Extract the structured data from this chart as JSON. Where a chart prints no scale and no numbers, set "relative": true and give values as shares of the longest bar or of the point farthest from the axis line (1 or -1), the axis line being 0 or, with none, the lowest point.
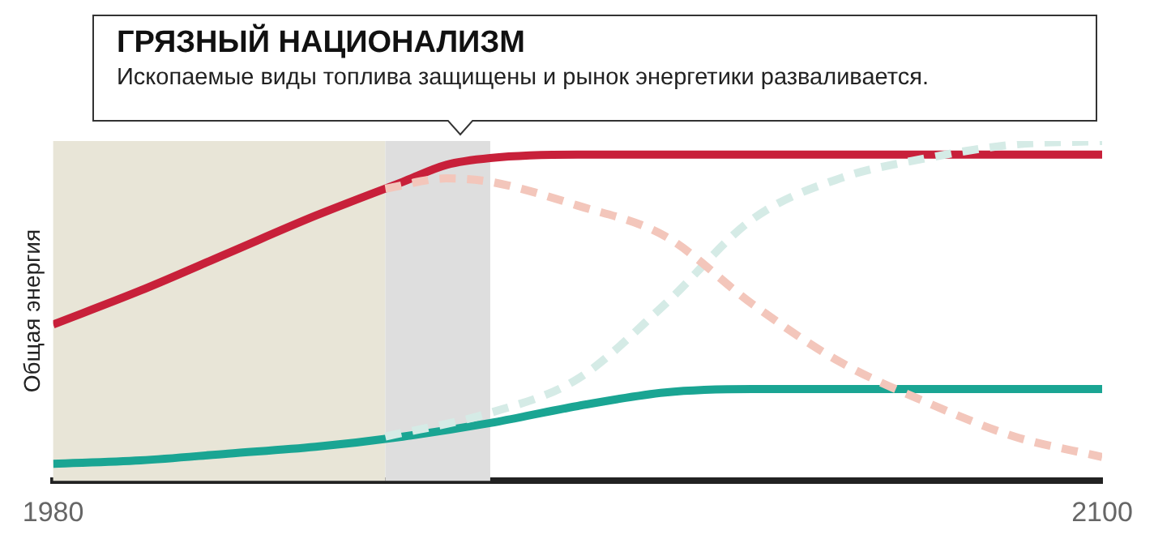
{
  "chart_data": {
    "type": "line",
    "title": "ГРЯЗНЫЙ НАЦИОНАЛИЗМ",
    "subtitle": "Ископаемые виды топлива защищены и рынок энергетики разваливается.",
    "ylabel": "Общая энергия",
    "relative": true,
    "xlim": [
      1980,
      2100
    ],
    "xticks": [
      1980,
      2100
    ],
    "grid": false,
    "legend": false,
    "marker": "none",
    "bands": [
      {
        "axis": "x",
        "from": 1980,
        "to": 2018,
        "color": "#e8e5d7"
      },
      {
        "axis": "x",
        "from": 2018,
        "to": 2030,
        "color": "#dedede"
      }
    ],
    "series": [
      {
        "color": "#f3c6bb",
        "line_style": "dashed",
        "x": [
          2018,
          2025,
          2030,
          2040,
          2050,
          2060,
          2070,
          2080,
          2090,
          2100
        ],
        "values": [
          0.86,
          0.89,
          0.88,
          0.81,
          0.72,
          0.52,
          0.35,
          0.23,
          0.13,
          0.07
        ]
      },
      {
        "color": "#d5ebe6",
        "line_style": "dashed",
        "x": [
          2018,
          2030,
          2040,
          2050,
          2060,
          2070,
          2080,
          2090,
          2100
        ],
        "values": [
          0.13,
          0.2,
          0.3,
          0.52,
          0.77,
          0.89,
          0.95,
          0.99,
          1
        ]
      },
      {
        "color": "#c8203a",
        "line_style": "solid",
        "x": [
          1980,
          1990,
          2000,
          2010,
          2020,
          2025,
          2030,
          2040,
          2100
        ],
        "values": [
          0.46,
          0.56,
          0.67,
          0.78,
          0.88,
          0.93,
          0.95,
          0.96,
          0.96
        ]
      },
      {
        "color": "#1aa593",
        "line_style": "solid",
        "x": [
          1980,
          1990,
          2000,
          2010,
          2020,
          2030,
          2040,
          2050,
          2060,
          2100
        ],
        "values": [
          0.05,
          0.06,
          0.08,
          0.1,
          0.13,
          0.17,
          0.22,
          0.26,
          0.27,
          0.27
        ]
      }
    ]
  }
}
